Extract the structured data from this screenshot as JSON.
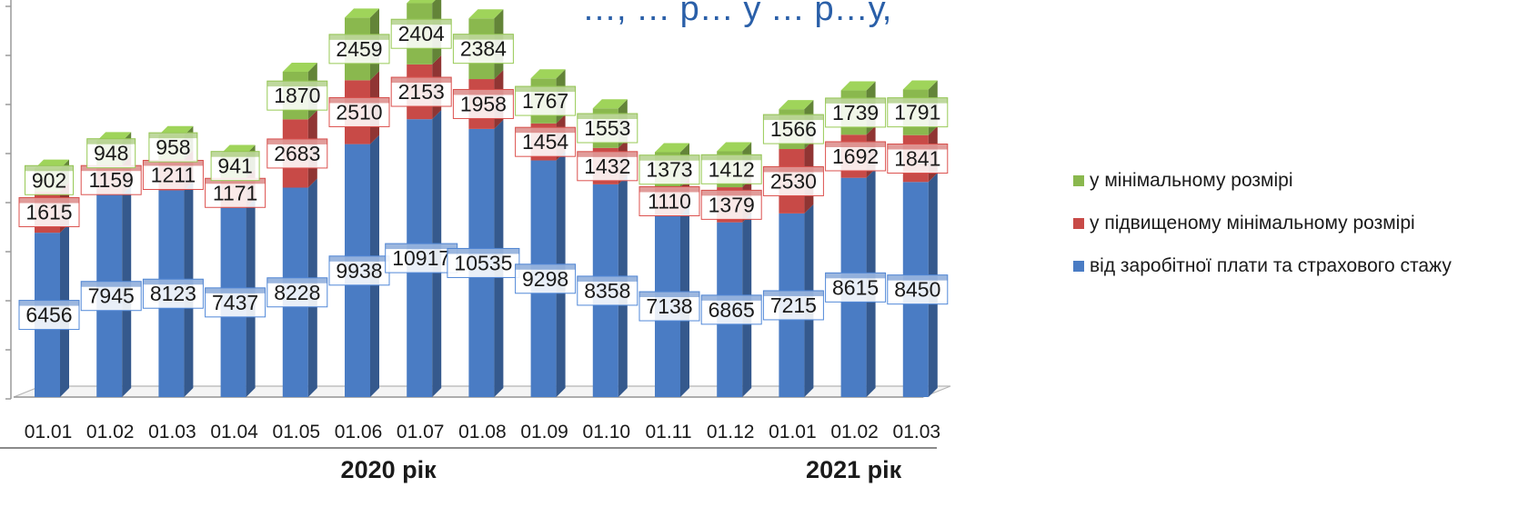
{
  "chart_data": {
    "type": "bar",
    "stacked": true,
    "three_d": true,
    "title": "…, … р… у … р…у,",
    "categories": [
      "01.01",
      "01.02",
      "01.03",
      "01.04",
      "01.05",
      "01.06",
      "01.07",
      "01.08",
      "01.09",
      "01.10",
      "01.11",
      "01.12",
      "01.01",
      "01.02",
      "01.03"
    ],
    "groups": [
      {
        "label": "2020 рік",
        "from": 0,
        "to": 11
      },
      {
        "label": "2021 рік",
        "from": 12,
        "to": 14
      }
    ],
    "series": [
      {
        "name": "від заробітної плати та страхового стажу",
        "color": "#4a7cc4",
        "values": [
          6456,
          7945,
          8123,
          7437,
          8228,
          9938,
          10917,
          10535,
          9298,
          8358,
          7138,
          6865,
          7215,
          8615,
          8450
        ]
      },
      {
        "name": "у підвищеному мінімальному розмірі",
        "color": "#c84a47",
        "values": [
          1615,
          1159,
          1211,
          1171,
          2683,
          2510,
          2153,
          1958,
          1454,
          1432,
          1110,
          1379,
          2530,
          1692,
          1841
        ]
      },
      {
        "name": "у мінімальному розмірі",
        "color": "#8ab84e",
        "values": [
          902,
          948,
          958,
          941,
          1870,
          2459,
          2404,
          2384,
          1767,
          1553,
          1373,
          1412,
          1566,
          1739,
          1791
        ]
      }
    ],
    "legend_order": [
      2,
      1,
      0
    ],
    "legend_position": "right",
    "ylim": [
      0,
      15600
    ],
    "grid": false
  }
}
